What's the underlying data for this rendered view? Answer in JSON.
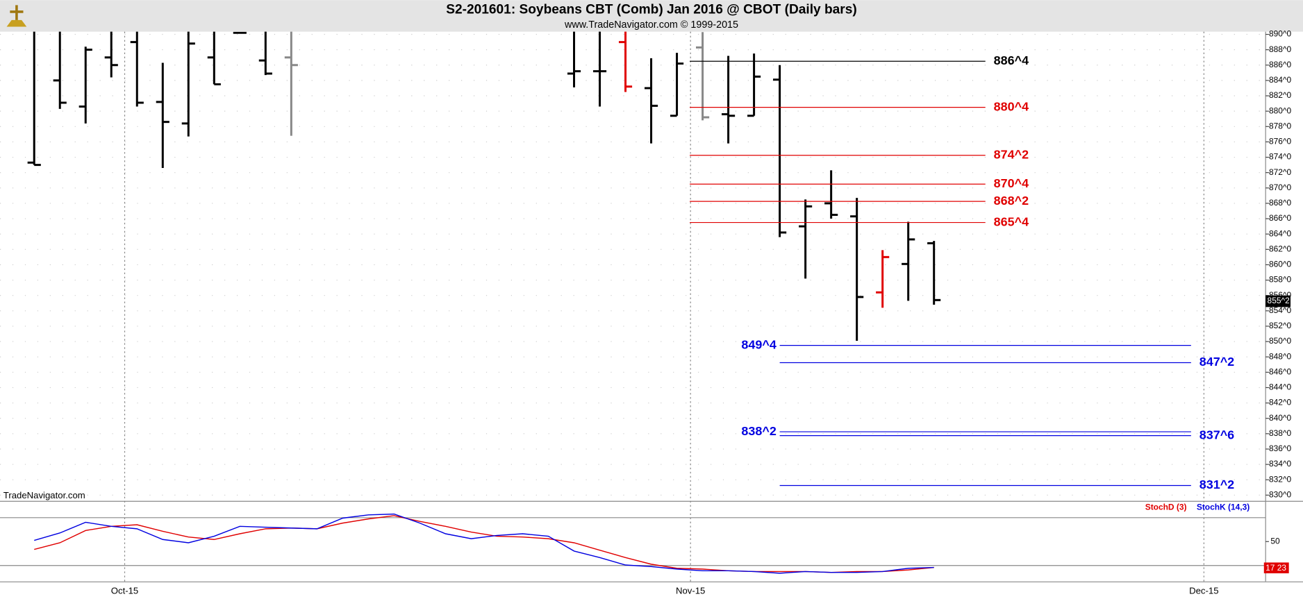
{
  "chart_data": [
    {
      "type": "ohlc",
      "title": "S2-201601:  Soybeans CBT (Comb) Jan 2016 @ CBOT  (Daily bars)",
      "subtitle": "www.TradeNavigator.com © 1999-2015",
      "watermark": "TradeNavigator.com",
      "x": [
        0,
        1,
        2,
        3,
        4,
        5,
        6,
        7,
        8,
        9,
        10,
        21,
        22,
        23,
        24,
        25,
        26,
        27,
        28,
        29,
        30,
        31,
        32,
        33,
        34,
        35
      ],
      "open": [
        873.3,
        884,
        880.6,
        887.0,
        889,
        881.2,
        878.4,
        887,
        890.2,
        886.6,
        887,
        884.9,
        885.2,
        889,
        883.0,
        879.4,
        888.3,
        879.6,
        879.4,
        884.1,
        865.0,
        868.0,
        866.3,
        856.4,
        860.1,
        862.8
      ],
      "high": [
        892,
        893,
        888.4,
        893,
        893,
        886.3,
        893,
        893,
        890.3,
        893,
        893,
        893,
        893,
        893,
        886.9,
        887.6,
        890.3,
        887.2,
        887.5,
        886.0,
        868.5,
        872.3,
        868.7,
        861.9,
        865.6,
        863.1
      ],
      "low": [
        873.0,
        880.3,
        878.4,
        884.4,
        880.6,
        872.6,
        876.7,
        883.5,
        890.1,
        884.7,
        876.8,
        883.1,
        880.6,
        882.5,
        875.8,
        879.4,
        878.8,
        875.8,
        879.4,
        863.6,
        858.2,
        866.0,
        850.1,
        854.4,
        855.3,
        854.8
      ],
      "close": [
        873.0,
        881.1,
        888.0,
        886.0,
        881.1,
        878.6,
        888.8,
        883.5,
        890.2,
        884.9,
        886.0,
        885.2,
        885.2,
        883.2,
        880.7,
        886.2,
        879.2,
        879.4,
        884.5,
        864.2,
        867.6,
        866.5,
        855.8,
        861.0,
        863.3,
        855.4
      ],
      "bar_colors": [
        "#000",
        "#000",
        "#000",
        "#000",
        "#000",
        "#000",
        "#000",
        "#000",
        "#000",
        "#000",
        "#888",
        "#000",
        "#000",
        "#e00000",
        "#000",
        "#000",
        "#888",
        "#000",
        "#000",
        "#000",
        "#000",
        "#000",
        "#000",
        "#e00000",
        "#000",
        "#000"
      ],
      "xlim": [
        -1.33,
        47.9
      ],
      "xticks": [
        {
          "value": 3.52,
          "label": "Oct-15"
        },
        {
          "value": 25.53,
          "label": "Nov-15"
        },
        {
          "value": 45.5,
          "label": "Dec-15"
        }
      ],
      "ylim": [
        829.25,
        890.35
      ],
      "yticks": [
        {
          "value": 830,
          "label": "830^0"
        },
        {
          "value": 832,
          "label": "832^0"
        },
        {
          "value": 834,
          "label": "834^0"
        },
        {
          "value": 836,
          "label": "836^0"
        },
        {
          "value": 838,
          "label": "838^0"
        },
        {
          "value": 840,
          "label": "840^0"
        },
        {
          "value": 842,
          "label": "842^0"
        },
        {
          "value": 844,
          "label": "844^0"
        },
        {
          "value": 846,
          "label": "846^0"
        },
        {
          "value": 848,
          "label": "848^0"
        },
        {
          "value": 850,
          "label": "850^0"
        },
        {
          "value": 852,
          "label": "852^0"
        },
        {
          "value": 854,
          "label": "854^0"
        },
        {
          "value": 856,
          "label": "856^0"
        },
        {
          "value": 858,
          "label": "858^0"
        },
        {
          "value": 860,
          "label": "860^0"
        },
        {
          "value": 862,
          "label": "862^0"
        },
        {
          "value": 864,
          "label": "864^0"
        },
        {
          "value": 866,
          "label": "866^0"
        },
        {
          "value": 868,
          "label": "868^0"
        },
        {
          "value": 870,
          "label": "870^0"
        },
        {
          "value": 872,
          "label": "872^0"
        },
        {
          "value": 874,
          "label": "874^0"
        },
        {
          "value": 876,
          "label": "876^0"
        },
        {
          "value": 878,
          "label": "878^0"
        },
        {
          "value": 880,
          "label": "880^0"
        },
        {
          "value": 882,
          "label": "882^0"
        },
        {
          "value": 884,
          "label": "884^0"
        },
        {
          "value": 886,
          "label": "886^0"
        },
        {
          "value": 888,
          "label": "888^0"
        },
        {
          "value": 890,
          "label": "890^0"
        }
      ],
      "levels": [
        {
          "value": 886.5,
          "label": "886^4",
          "color": "#000",
          "from": 25.5,
          "to": 37,
          "label_side": "right"
        },
        {
          "value": 880.5,
          "label": "880^4",
          "color": "#e00000",
          "from": 25.5,
          "to": 37,
          "label_side": "right"
        },
        {
          "value": 874.25,
          "label": "874^2",
          "color": "#e00000",
          "from": 25.5,
          "to": 37,
          "label_side": "right"
        },
        {
          "value": 870.5,
          "label": "870^4",
          "color": "#e00000",
          "from": 25.5,
          "to": 37,
          "label_side": "right"
        },
        {
          "value": 868.25,
          "label": "868^2",
          "color": "#e00000",
          "from": 25.5,
          "to": 37,
          "label_side": "right"
        },
        {
          "value": 865.5,
          "label": "865^4",
          "color": "#e00000",
          "from": 25.5,
          "to": 37,
          "label_side": "right"
        },
        {
          "value": 849.5,
          "label": "849^4",
          "color": "#0000e0",
          "from": 29,
          "to": 45,
          "label_side": "left"
        },
        {
          "value": 847.25,
          "label": "847^2",
          "color": "#0000e0",
          "from": 29,
          "to": 45,
          "label_side": "right"
        },
        {
          "value": 838.25,
          "label": "838^2",
          "color": "#0000e0",
          "from": 29,
          "to": 45,
          "label_side": "left"
        },
        {
          "value": 837.75,
          "label": "837^6",
          "color": "#0000e0",
          "from": 29,
          "to": 45,
          "label_side": "right"
        },
        {
          "value": 831.25,
          "label": "831^2",
          "color": "#0000e0",
          "from": 29,
          "to": 45,
          "label_side": "right"
        }
      ],
      "last_price": {
        "value": 855.25,
        "label": "855^2"
      },
      "grid": true
    },
    {
      "type": "line",
      "x": [
        0,
        1,
        2,
        3,
        4,
        5,
        6,
        7,
        8,
        9,
        10,
        11,
        12,
        13,
        14,
        15,
        16,
        17,
        18,
        19,
        20,
        21,
        22,
        23,
        24,
        25,
        26,
        27,
        28,
        29,
        30,
        31,
        32,
        33,
        34,
        35
      ],
      "series": [
        {
          "name": "StochD (3)",
          "color": "#e00000",
          "values": [
            40.2,
            48.5,
            63.9,
            69.1,
            71.1,
            62.9,
            55.7,
            52.6,
            59.8,
            66.0,
            67.0,
            66.0,
            73.2,
            78.4,
            82.5,
            75.3,
            69.1,
            61.9,
            56.7,
            55.7,
            53.6,
            48.5,
            39.2,
            29.9,
            21.6,
            16.5,
            15.5,
            13.4,
            12.4,
            12.4,
            12.4,
            11.3,
            12.4,
            12.4,
            14.4,
            17.5
          ]
        },
        {
          "name": "StochK (14,3)",
          "color": "#0000e0",
          "values": [
            51.5,
            60.8,
            74.2,
            69.1,
            66.0,
            52.6,
            48.5,
            56.7,
            69.1,
            68.0,
            67.0,
            66.0,
            79.4,
            83.5,
            84.5,
            73.2,
            59.8,
            53.6,
            57.7,
            59.8,
            56.7,
            38.1,
            29.9,
            20.6,
            18.6,
            15.5,
            13.4,
            13.4,
            12.4,
            10.3,
            12.4,
            11.3,
            11.3,
            12.4,
            16.5,
            17.5
          ]
        }
      ],
      "ylim": [
        0,
        100
      ],
      "yticks": [
        50
      ],
      "reference_lines": [
        20,
        80
      ],
      "last_value_label": "17 23"
    }
  ]
}
